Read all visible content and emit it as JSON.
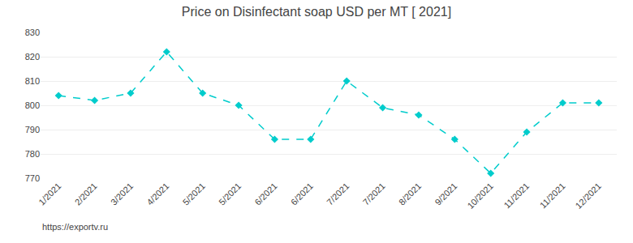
{
  "chart_data": {
    "type": "line",
    "title": "Price on Disinfectant soap USD per MT [ 2021]",
    "categories": [
      "1/2021",
      "2/2021",
      "3/2021",
      "4/2021",
      "5/2021",
      "5/2021",
      "6/2021",
      "6/2021",
      "7/2021",
      "7/2021",
      "8/2021",
      "9/2021",
      "10/2021",
      "11/2021",
      "11/2021",
      "12/2021"
    ],
    "values": [
      804,
      802,
      805,
      822,
      805,
      800,
      786,
      786,
      810,
      799,
      796,
      786,
      772,
      789,
      801,
      801
    ],
    "color": "#00CCCC",
    "marker": "diamond",
    "line_style": "dashed",
    "ylim": [
      770,
      830
    ],
    "yticks": [
      770,
      780,
      790,
      800,
      810,
      820,
      830
    ],
    "grid": true,
    "annotations": [
      "https://exportv.ru"
    ]
  }
}
